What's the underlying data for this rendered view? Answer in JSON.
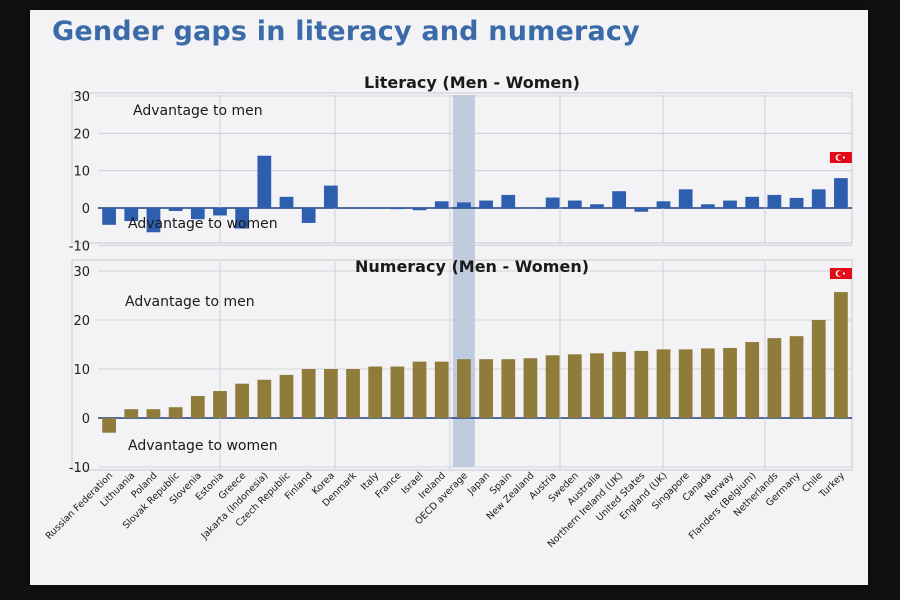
{
  "slide": {
    "title": "Gender gaps in literacy and numeracy"
  },
  "colors": {
    "literacy_bar": "#2e5fae",
    "numeracy_bar": "#8f7b3a",
    "oecd_highlight": "#aebdd6",
    "title": "#3a6aa8",
    "flag_red": "#e30a17"
  },
  "icons": {
    "turkey_flag": "turkey-flag-icon"
  },
  "chart_data": [
    {
      "type": "bar",
      "title": "Literacy (Men - Women)",
      "ylim": [
        -10,
        30
      ],
      "yticks": [
        -10,
        0,
        10,
        20,
        30
      ],
      "grid": true,
      "annotations": [
        "Advantage to men",
        "Advantage to women"
      ],
      "highlight_category": "OECD average",
      "categories": [
        "Russian Federation",
        "Lithuania",
        "Poland",
        "Slovak Republic",
        "Slovenia",
        "Estonia",
        "Greece",
        "Jakarta (Indonesia)",
        "Czech Republic",
        "Finland",
        "Korea",
        "Denmark",
        "Italy",
        "France",
        "Israel",
        "Ireland",
        "OECD average",
        "Japan",
        "Spain",
        "New Zealand",
        "Austria",
        "Sweden",
        "Australia",
        "Northern Ireland (UK)",
        "United States",
        "England (UK)",
        "Singapore",
        "Canada",
        "Norway",
        "Flanders (Belgium)",
        "Netherlands",
        "Germany",
        "Chile",
        "Turkey"
      ],
      "values": [
        -4.5,
        -3.5,
        -6.5,
        -0.8,
        -3,
        -2,
        -5.5,
        14,
        3,
        -4,
        6,
        -0.2,
        -0.2,
        -0.3,
        -0.6,
        1.8,
        1.5,
        2,
        3.5,
        0,
        2.8,
        2,
        1,
        4.5,
        -1,
        1.8,
        5,
        1,
        2,
        3,
        3.5,
        2.7,
        5,
        8
      ]
    },
    {
      "type": "bar",
      "title": "Numeracy (Men - Women)",
      "ylim": [
        -10,
        30
      ],
      "yticks": [
        -10,
        0,
        10,
        20,
        30
      ],
      "grid": true,
      "annotations": [
        "Advantage to men",
        "Advantage to women"
      ],
      "highlight_category": "OECD average",
      "categories": [
        "Russian Federation",
        "Lithuania",
        "Poland",
        "Slovak Republic",
        "Slovenia",
        "Estonia",
        "Greece",
        "Jakarta (Indonesia)",
        "Czech Republic",
        "Finland",
        "Korea",
        "Denmark",
        "Italy",
        "France",
        "Israel",
        "Ireland",
        "OECD average",
        "Japan",
        "Spain",
        "New Zealand",
        "Austria",
        "Sweden",
        "Australia",
        "Northern Ireland (UK)",
        "United States",
        "England (UK)",
        "Singapore",
        "Canada",
        "Norway",
        "Flanders (Belgium)",
        "Netherlands",
        "Germany",
        "Chile",
        "Turkey"
      ],
      "values": [
        -3,
        1.8,
        1.8,
        2.2,
        4.5,
        5.5,
        7,
        7.8,
        8.8,
        10,
        10,
        10,
        10.5,
        10.5,
        11.5,
        11.5,
        12,
        12,
        12,
        12.2,
        12.8,
        13,
        13.2,
        13.5,
        13.7,
        14,
        14,
        14.2,
        14.3,
        15.5,
        16.3,
        16.7,
        20,
        25.7
      ]
    }
  ]
}
